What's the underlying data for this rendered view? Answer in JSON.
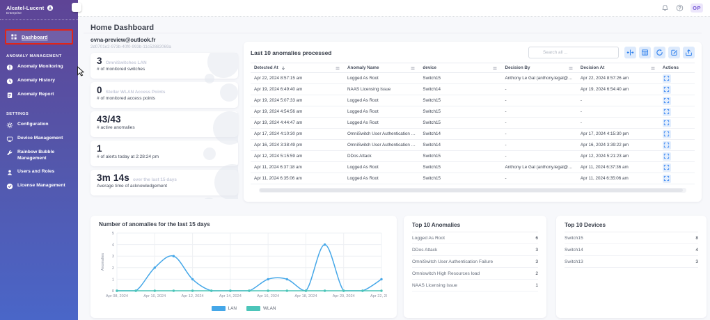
{
  "brand": {
    "name": "Alcatel-Lucent",
    "sub": "Enterprise"
  },
  "topbar": {
    "icons": [
      {
        "name": "notifications",
        "icon": "bell"
      },
      {
        "name": "help",
        "icon": "help"
      }
    ],
    "avatar_initials": "OP"
  },
  "sidebar": {
    "active_item": {
      "label": "Dashboard",
      "icon": "grid"
    },
    "sections": [
      {
        "title": "ANOMALY MANAGEMENT",
        "items": [
          {
            "label": "Anomaly Monitoring",
            "icon": "alert"
          },
          {
            "label": "Anomaly History",
            "icon": "clock"
          },
          {
            "label": "Anomaly Report",
            "icon": "report"
          }
        ]
      },
      {
        "title": "SETTINGS",
        "items": [
          {
            "label": "Configuration",
            "icon": "gear"
          },
          {
            "label": "Device Management",
            "icon": "device"
          },
          {
            "label": "Rainbow Bubble Management",
            "icon": "wrench"
          },
          {
            "label": "Users and Roles",
            "icon": "user"
          },
          {
            "label": "License Management",
            "icon": "check-circle"
          }
        ]
      }
    ]
  },
  "page": {
    "title": "Home Dashboard",
    "account_email": "ovna-preview@outlook.fr",
    "account_id": "2d0701e2-973b-40f0-993b-11c52882069a"
  },
  "stats": [
    {
      "value": "3",
      "value_suffix": "OmniSwitches LAN",
      "label": "# of monitored switches"
    },
    {
      "value": "0",
      "value_suffix": "Stellar WLAN Access Points",
      "label": "# of monitored access points"
    },
    {
      "value": "43/43",
      "value_suffix": "",
      "label": "# active anomalies"
    },
    {
      "value": "1",
      "value_suffix": "",
      "label": "# of alerts today at 2:28:24 pm"
    },
    {
      "value": "3m 14s",
      "value_suffix": "over the last 15 days",
      "label": "Average time of acknowledgement"
    }
  ],
  "anomalies_table": {
    "title": "Last 10 anomalies processed",
    "search_placeholder": "Search all ...",
    "search_icon": "search",
    "toolbar_icons": [
      "fit-columns",
      "columns",
      "refresh",
      "edit",
      "export"
    ],
    "columns": [
      "Detected At",
      "Anomaly Name",
      "device",
      "Decision By",
      "Decision At",
      "Actions"
    ],
    "rows": [
      [
        "Apr 22, 2024 8:57:15 am",
        "Logged As Root",
        "Switch15",
        "Anthony Le Gal (anthony.legal@al-e...",
        "Apr 22, 2024 8:57:26 am"
      ],
      [
        "Apr 19, 2024 6:49:40 am",
        "NAAS Licensing Issue",
        "Switch14",
        "-",
        "Apr 19, 2024 6:54:40 am"
      ],
      [
        "Apr 19, 2024 5:07:33 am",
        "Logged As Root",
        "Switch15",
        "-",
        "-"
      ],
      [
        "Apr 19, 2024 4:54:56 am",
        "Logged As Root",
        "Switch15",
        "-",
        "-"
      ],
      [
        "Apr 19, 2024 4:44:47 am",
        "Logged As Root",
        "Switch15",
        "-",
        "-"
      ],
      [
        "Apr 17, 2024 4:10:30 pm",
        "OmniSwitch User Authentication Fail...",
        "Switch14",
        "-",
        "Apr 17, 2024 4:15:30 pm"
      ],
      [
        "Apr 16, 2024 3:38:49 pm",
        "OmniSwitch User Authentication Fail...",
        "Switch14",
        "-",
        "Apr 16, 2024 3:39:22 pm"
      ],
      [
        "Apr 12, 2024 5:15:59 am",
        "DDos Attack",
        "Switch15",
        "-",
        "Apr 12, 2024 5:21:23 am"
      ],
      [
        "Apr 11, 2024 6:37:18 am",
        "Logged As Root",
        "Switch15",
        "Anthony Le Gal (anthony.legal@al-e...",
        "Apr 11, 2024 6:37:36 am"
      ],
      [
        "Apr 11, 2024 6:35:06 am",
        "Logged As Root",
        "Switch15",
        "-",
        "Apr 11, 2024 6:35:06 am"
      ]
    ]
  },
  "chart_data": {
    "type": "line",
    "title": "Number of anomalies for the last 15 days",
    "xlabel": "",
    "ylabel": "Anomalies",
    "ylim": [
      0,
      5
    ],
    "yticks": [
      0,
      1,
      2,
      3,
      4,
      5
    ],
    "x": [
      "Apr 08, 2024",
      "Apr 09, 2024",
      "Apr 10, 2024",
      "Apr 11, 2024",
      "Apr 12, 2024",
      "Apr 13, 2024",
      "Apr 14, 2024",
      "Apr 15, 2024",
      "Apr 16, 2024",
      "Apr 17, 2024",
      "Apr 18, 2024",
      "Apr 19, 2024",
      "Apr 20, 2024",
      "Apr 21, 2024",
      "Apr 22, 2024"
    ],
    "xtick_every": 2,
    "grid": true,
    "legend_position": "bottom",
    "series": [
      {
        "name": "LAN",
        "color": "#45a7e8",
        "values": [
          0,
          0,
          2,
          3,
          1,
          0,
          0,
          0,
          1,
          1,
          0,
          4,
          0,
          0,
          1
        ]
      },
      {
        "name": "WLAN",
        "color": "#4cc5b9",
        "values": [
          0,
          0,
          0,
          0,
          0,
          0,
          0,
          0,
          0,
          0,
          0,
          0,
          0,
          0,
          0
        ]
      }
    ]
  },
  "top_anomalies": {
    "title": "Top 10 Anomalies",
    "items": [
      {
        "label": "Logged As Root",
        "count": 6
      },
      {
        "label": "DDos Attack",
        "count": 3
      },
      {
        "label": "OmniSwitch User Authentication Failure",
        "count": 3
      },
      {
        "label": "Omniswitch High Resources load",
        "count": 2
      },
      {
        "label": "NAAS Licensing issue",
        "count": 1
      }
    ]
  },
  "top_devices": {
    "title": "Top 10 Devices",
    "items": [
      {
        "label": "Switch15",
        "count": 8
      },
      {
        "label": "Switch14",
        "count": 4
      },
      {
        "label": "Switch13",
        "count": 3
      }
    ]
  },
  "colors": {
    "sidebar_top": "#5e4496",
    "sidebar_bottom": "#4a66c8",
    "accent_blue": "#2f80ed",
    "lan": "#45a7e8",
    "wlan": "#4cc5b9",
    "highlight_red": "#e02519"
  }
}
